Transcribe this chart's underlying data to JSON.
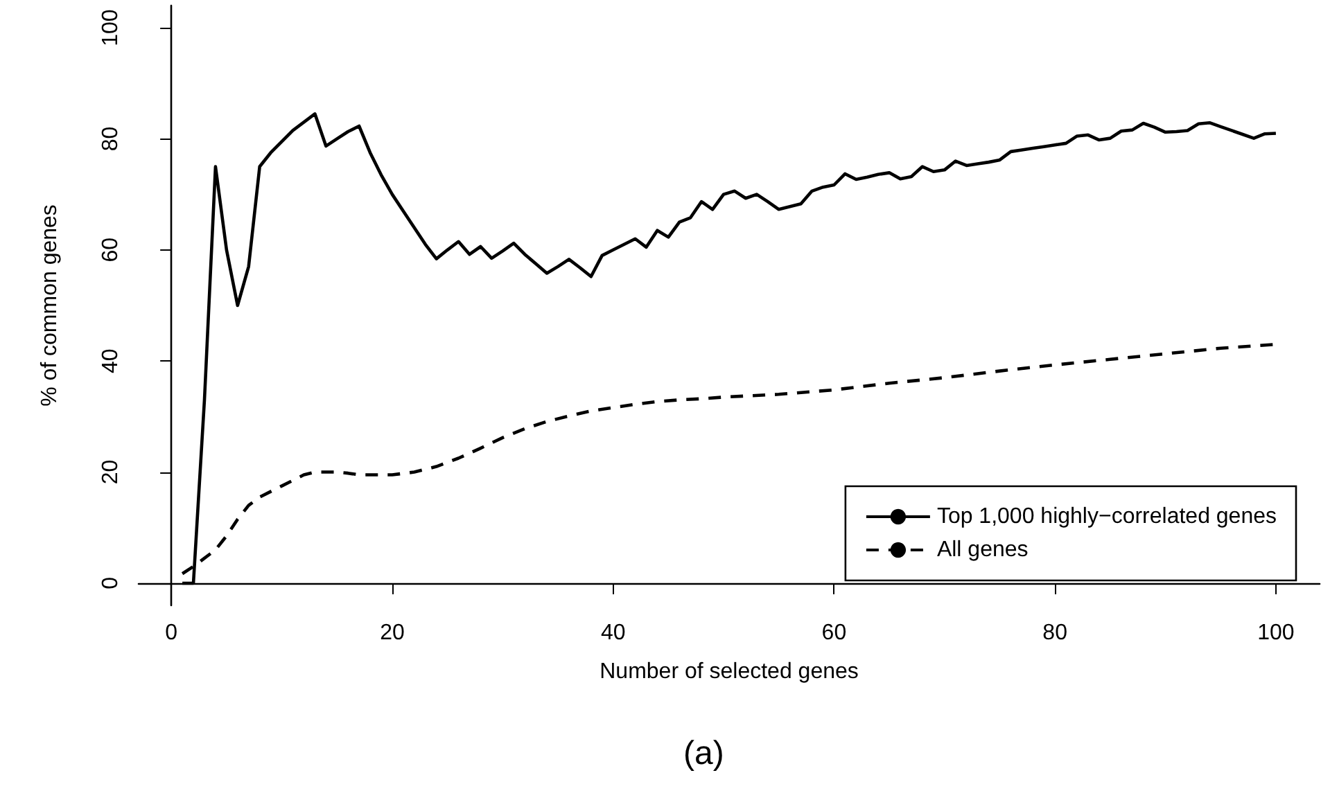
{
  "chart_data": {
    "type": "line",
    "xlabel": "Number of selected genes",
    "ylabel": "% of common genes",
    "annotations": [
      "(a)"
    ],
    "xlim": [
      -2.96,
      103.96
    ],
    "ylim": [
      -4,
      104
    ],
    "xticks": [
      0,
      20,
      40,
      60,
      80,
      100
    ],
    "yticks": [
      0,
      20,
      40,
      60,
      80,
      100
    ],
    "grid": false,
    "legend": "bottom right",
    "marker": "none",
    "series": [
      {
        "name": "Top 1,000 highly−correlated genes",
        "color": "#000000",
        "line_style": "solid",
        "x": [
          1,
          2,
          3,
          4,
          5,
          6,
          7,
          8,
          9,
          10,
          11,
          12,
          13,
          14,
          15,
          16,
          17,
          18,
          19,
          20,
          21,
          22,
          23,
          24,
          25,
          26,
          27,
          28,
          29,
          30,
          31,
          32,
          33,
          34,
          35,
          36,
          37,
          38,
          39,
          40,
          41,
          42,
          43,
          44,
          45,
          46,
          47,
          48,
          49,
          50,
          51,
          52,
          53,
          54,
          55,
          56,
          57,
          58,
          59,
          60,
          61,
          62,
          63,
          64,
          65,
          66,
          67,
          68,
          69,
          70,
          71,
          72,
          73,
          74,
          75,
          76,
          77,
          78,
          79,
          80,
          81,
          82,
          83,
          84,
          85,
          86,
          87,
          88,
          89,
          90,
          91,
          92,
          93,
          94,
          95,
          96,
          97,
          98,
          99,
          100
        ],
        "values": [
          0,
          0,
          33,
          75,
          60,
          50,
          57,
          75,
          77.5,
          79.5,
          81.5,
          83,
          84.5,
          78.7,
          80,
          81.3,
          82.3,
          77.5,
          73.5,
          70,
          67,
          64,
          61,
          58.4,
          60,
          61.5,
          59.2,
          60.6,
          58.5,
          59.8,
          61.2,
          59.2,
          57.5,
          55.8,
          57,
          58.3,
          56.8,
          55.2,
          59,
          60,
          61,
          62,
          60.5,
          63.5,
          62.3,
          65,
          65.8,
          68.7,
          67.3,
          70,
          70.6,
          69.3,
          70,
          68.7,
          67.3,
          67.8,
          68.3,
          70.6,
          71.3,
          71.7,
          73.7,
          72.7,
          73.1,
          73.6,
          73.9,
          72.8,
          73.2,
          75,
          74.1,
          74.4,
          76,
          75.2,
          75.5,
          75.8,
          76.2,
          77.7,
          78,
          78.3,
          78.6,
          78.9,
          79.2,
          80.5,
          80.7,
          79.8,
          80.1,
          81.4,
          81.6,
          82.8,
          82.1,
          81.2,
          81.3,
          81.5,
          82.7,
          82.9,
          82.2,
          81.5,
          80.8,
          80.1,
          80.9,
          81
        ]
      },
      {
        "name": "All genes",
        "color": "#000000",
        "line_style": "dashed",
        "x": [
          1,
          2,
          3,
          4,
          5,
          6,
          7,
          8,
          9,
          10,
          11,
          12,
          13,
          14,
          15,
          16,
          17,
          18,
          19,
          20,
          22,
          24,
          26,
          28,
          30,
          32,
          34,
          36,
          38,
          40,
          42,
          44,
          46,
          48,
          50,
          55,
          60,
          65,
          70,
          75,
          80,
          85,
          90,
          95,
          100
        ],
        "values": [
          1.7,
          3,
          4.5,
          6,
          8.5,
          11.5,
          14,
          15.5,
          16.5,
          17.5,
          18.5,
          19.5,
          20,
          20,
          20,
          19.8,
          19.5,
          19.5,
          19.5,
          19.5,
          20,
          21,
          22.5,
          24.3,
          26.2,
          27.8,
          29.1,
          30.1,
          31,
          31.6,
          32.2,
          32.7,
          33,
          33.2,
          33.5,
          34,
          34.8,
          36,
          37,
          38.2,
          39.3,
          40.3,
          41.3,
          42.3,
          43
        ]
      }
    ]
  }
}
